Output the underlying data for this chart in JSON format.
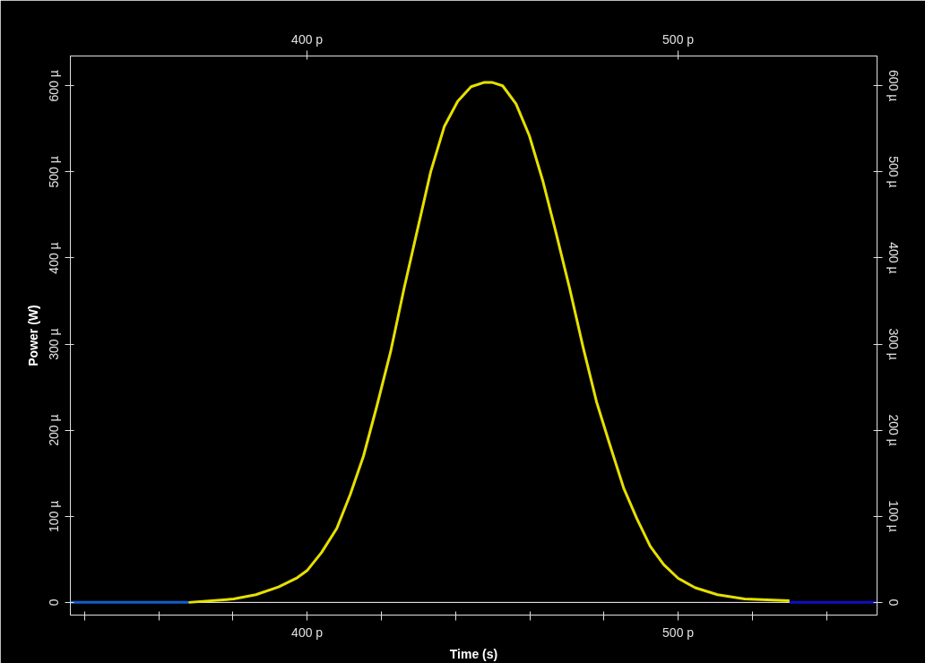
{
  "chart_data": {
    "type": "line",
    "xlabel": "Time (s)",
    "ylabel": "Power (W)",
    "xlim": [
      336.2,
      553.6
    ],
    "ylim": [
      -14.7,
      634.6
    ],
    "y2lim": [
      -14.7,
      634.6
    ],
    "x2lim": [
      336.2,
      553.6
    ],
    "xticks": [
      {
        "value": 340,
        "label": null
      },
      {
        "value": 360,
        "label": null
      },
      {
        "value": 380,
        "label": null
      },
      {
        "value": 400,
        "label": "400 p"
      },
      {
        "value": 420,
        "label": null
      },
      {
        "value": 440,
        "label": null
      },
      {
        "value": 460,
        "label": null
      },
      {
        "value": 480,
        "label": null
      },
      {
        "value": 500,
        "label": "500 p"
      },
      {
        "value": 520,
        "label": null
      },
      {
        "value": 540,
        "label": null
      }
    ],
    "x2ticks": [
      {
        "value": 400,
        "label": "400 p"
      },
      {
        "value": 500,
        "label": "500 p"
      }
    ],
    "yticks": [
      0,
      {
        "value": 100,
        "label": "100 µ"
      },
      {
        "value": 200,
        "label": "200 µ"
      },
      {
        "value": 300,
        "label": "300 µ"
      },
      {
        "value": 400,
        "label": "400 µ"
      },
      {
        "value": 500,
        "label": "500 µ"
      },
      {
        "value": 600,
        "label": "600 µ"
      }
    ],
    "y2ticks": [
      0,
      {
        "value": 100,
        "label": "100 µ"
      },
      {
        "value": 200,
        "label": "200 µ"
      },
      {
        "value": 300,
        "label": "300 µ"
      },
      {
        "value": 400,
        "label": "400 µ"
      },
      {
        "value": 500,
        "label": "500 µ"
      },
      {
        "value": 600,
        "label": "600 µ"
      }
    ],
    "grid": false,
    "ref_lines": [
      {
        "axis": "y",
        "value": 0,
        "label": null,
        "color": "#ffffff"
      }
    ],
    "series": [
      {
        "color": "#1060c8",
        "x": [
          336.2,
          368.1
        ],
        "values": [
          0,
          0
        ]
      },
      {
        "color": "#1010c0",
        "x": [
          530,
          553.6
        ],
        "values": [
          0,
          0
        ]
      },
      {
        "color": "#e6e000",
        "x": [
          368.1,
          380.2,
          386.2,
          392.3,
          397.1,
          400,
          403.9,
          408,
          411.6,
          415.2,
          418.8,
          422.5,
          426.1,
          429.7,
          433.3,
          437,
          440.6,
          444.2,
          447.8,
          449.8,
          452.7,
          456.3,
          459.9,
          463.5,
          467.1,
          470.8,
          474.4,
          478,
          481.6,
          485.3,
          488.9,
          492.5,
          496.1,
          500,
          504.6,
          510.6,
          517.9,
          530
        ],
        "values": [
          0,
          4,
          9,
          18,
          28,
          37,
          58,
          86,
          125,
          170,
          228,
          291,
          364,
          432,
          500,
          553,
          582,
          599,
          604,
          604,
          600,
          579,
          542,
          490,
          429,
          364,
          296,
          233,
          183,
          133,
          97,
          65,
          44,
          28,
          17,
          9,
          4,
          2
        ]
      }
    ]
  }
}
